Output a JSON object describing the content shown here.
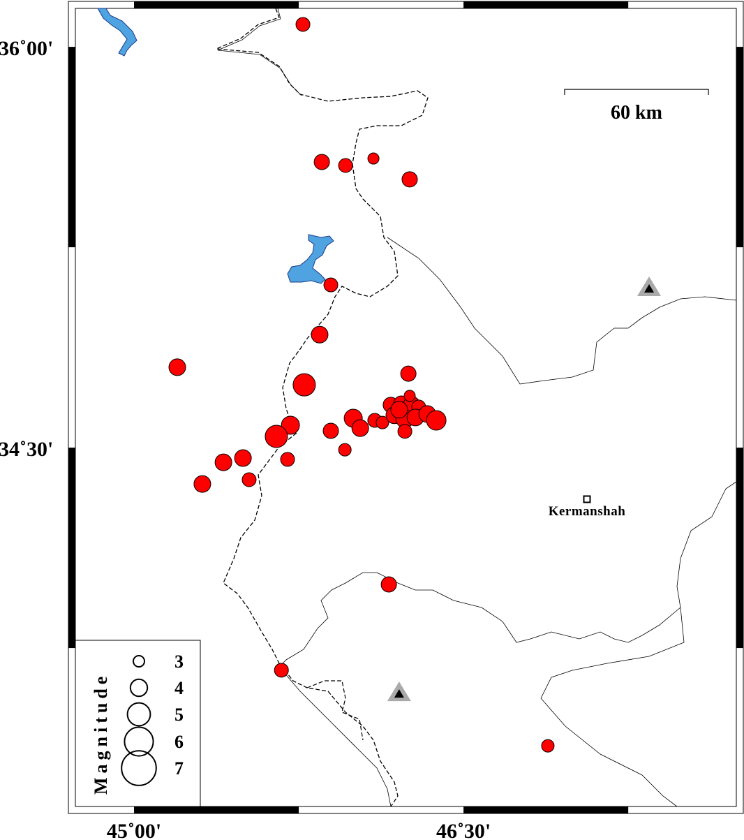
{
  "map": {
    "extent": {
      "lon_min": 44.733,
      "lon_max": 47.742,
      "lat_min": 33.157,
      "lat_max": 36.144
    },
    "x_ticks": [
      {
        "lon": 45.0,
        "label": "45˚00'"
      },
      {
        "lon": 46.5,
        "label": "46˚30'"
      }
    ],
    "y_ticks": [
      {
        "lat": 36.0,
        "label": "36˚00'"
      },
      {
        "lat": 34.5,
        "label": "34˚30'"
      }
    ],
    "scale_bar": {
      "label": "60 km",
      "km": 60
    },
    "city": {
      "name": "Kermanshah",
      "lon": 47.062,
      "lat": 34.307
    },
    "stations": [
      {
        "lon": 47.345,
        "lat": 35.096
      },
      {
        "lon": 46.207,
        "lat": 33.58
      }
    ],
    "colors": {
      "event": "#ff0000",
      "water": "#4ea3e0",
      "station": "#aaaaaa"
    },
    "legend": {
      "title": "Magnitude",
      "items": [
        {
          "mag": 3,
          "label": "3"
        },
        {
          "mag": 4,
          "label": "4"
        },
        {
          "mag": 5,
          "label": "5"
        },
        {
          "mag": 6,
          "label": "6"
        },
        {
          "mag": 7,
          "label": "7"
        }
      ]
    },
    "events": [
      {
        "lon": 45.769,
        "lat": 36.084,
        "mag": 3
      },
      {
        "lon": 45.855,
        "lat": 35.569,
        "mag": 3.25
      },
      {
        "lon": 45.963,
        "lat": 35.556,
        "mag": 3
      },
      {
        "lon": 46.09,
        "lat": 35.582,
        "mag": 2.5
      },
      {
        "lon": 46.255,
        "lat": 35.504,
        "mag": 3.25
      },
      {
        "lon": 45.896,
        "lat": 35.109,
        "mag": 3
      },
      {
        "lon": 45.845,
        "lat": 34.923,
        "mag": 3.5
      },
      {
        "lon": 45.197,
        "lat": 34.801,
        "mag": 3.5
      },
      {
        "lon": 45.775,
        "lat": 34.735,
        "mag": 4.5
      },
      {
        "lon": 46.249,
        "lat": 34.777,
        "mag": 3.25
      },
      {
        "lon": 45.712,
        "lat": 34.584,
        "mag": 3.75
      },
      {
        "lon": 45.648,
        "lat": 34.542,
        "mag": 4.5
      },
      {
        "lon": 45.896,
        "lat": 34.563,
        "mag": 3.25
      },
      {
        "lon": 45.96,
        "lat": 34.492,
        "mag": 2.75
      },
      {
        "lon": 45.699,
        "lat": 34.456,
        "mag": 3
      },
      {
        "lon": 45.496,
        "lat": 34.461,
        "mag": 3.5
      },
      {
        "lon": 45.407,
        "lat": 34.445,
        "mag": 3.5
      },
      {
        "lon": 45.524,
        "lat": 34.38,
        "mag": 3
      },
      {
        "lon": 45.311,
        "lat": 34.364,
        "mag": 3.5
      },
      {
        "lon": 45.998,
        "lat": 34.61,
        "mag": 3.75
      },
      {
        "lon": 46.03,
        "lat": 34.573,
        "mag": 3.5
      },
      {
        "lon": 46.096,
        "lat": 34.602,
        "mag": 3
      },
      {
        "lon": 46.131,
        "lat": 34.594,
        "mag": 2.75
      },
      {
        "lon": 46.169,
        "lat": 34.66,
        "mag": 3.25
      },
      {
        "lon": 46.217,
        "lat": 34.665,
        "mag": 3.25
      },
      {
        "lon": 46.264,
        "lat": 34.66,
        "mag": 3.5
      },
      {
        "lon": 46.296,
        "lat": 34.652,
        "mag": 3
      },
      {
        "lon": 46.255,
        "lat": 34.694,
        "mag": 2.5
      },
      {
        "lon": 46.185,
        "lat": 34.621,
        "mag": 3.5
      },
      {
        "lon": 46.233,
        "lat": 34.608,
        "mag": 3.75
      },
      {
        "lon": 46.281,
        "lat": 34.613,
        "mag": 3.5
      },
      {
        "lon": 46.335,
        "lat": 34.626,
        "mag": 3.5
      },
      {
        "lon": 46.376,
        "lat": 34.602,
        "mag": 4
      },
      {
        "lon": 46.233,
        "lat": 34.561,
        "mag": 3
      },
      {
        "lon": 46.207,
        "lat": 34.642,
        "mag": 3.5
      },
      {
        "lon": 46.16,
        "lat": 33.988,
        "mag": 3.25
      },
      {
        "lon": 45.671,
        "lat": 33.667,
        "mag": 3
      },
      {
        "lon": 46.884,
        "lat": 33.384,
        "mag": 2.75
      }
    ]
  }
}
